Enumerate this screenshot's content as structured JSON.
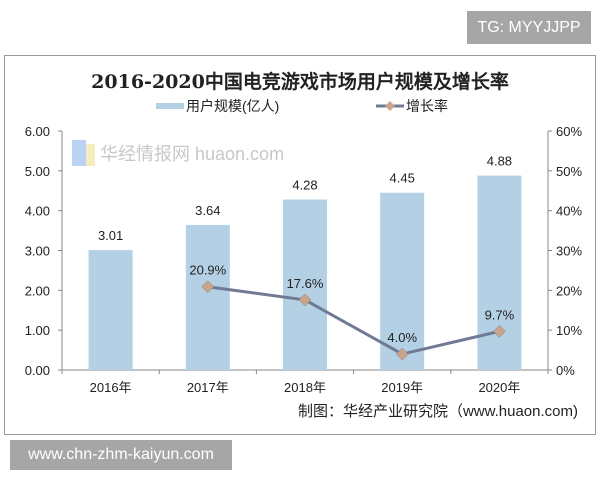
{
  "overlay": {
    "tg_label": "TG: MYYJJPP",
    "site_label": "www.chn-zhm-kaiyun.com"
  },
  "chart_data": {
    "type": "bar",
    "title": "2016-2020中国电竞游戏市场用户规模及增长率",
    "categories": [
      "2016年",
      "2017年",
      "2018年",
      "2019年",
      "2020年"
    ],
    "series": [
      {
        "name": "用户规模(亿人)",
        "type": "bar",
        "axis": "left",
        "values": [
          3.01,
          3.64,
          4.28,
          4.45,
          4.88
        ],
        "labels": [
          "3.01",
          "3.64",
          "4.28",
          "4.45",
          "4.88"
        ],
        "color": "#b4d0e4"
      },
      {
        "name": "增长率",
        "type": "line",
        "axis": "right",
        "values": [
          null,
          20.9,
          17.6,
          4.0,
          9.7
        ],
        "labels": [
          "",
          "20.9%",
          "17.6%",
          "4.0%",
          "9.7%"
        ],
        "color": "#6f7a95",
        "marker_color": "#c9a58e"
      }
    ],
    "left_axis": {
      "ylim": [
        0,
        6
      ],
      "ticks": [
        "0.00",
        "1.00",
        "2.00",
        "3.00",
        "4.00",
        "5.00",
        "6.00"
      ]
    },
    "right_axis": {
      "ylim": [
        0,
        60
      ],
      "ticks": [
        "0%",
        "10%",
        "20%",
        "30%",
        "40%",
        "50%",
        "60%"
      ]
    },
    "grid": false,
    "legend": "top",
    "source": "制图：华经产业研究院（www.huaon.com)",
    "watermark": "华经情报网 huaon.com"
  }
}
